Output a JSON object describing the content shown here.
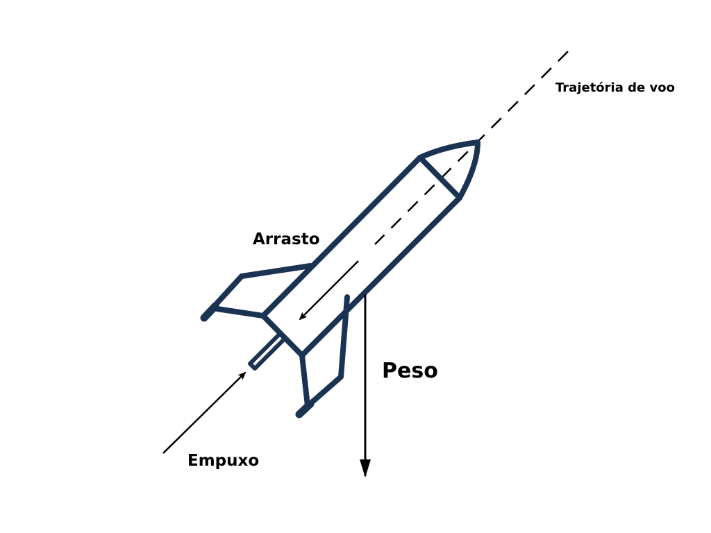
{
  "labels": {
    "trajectory": "Trajetória de voo",
    "drag": "Arrasto",
    "weight": "Peso",
    "thrust": "Empuxo"
  },
  "colors": {
    "rocket_outline": "#1b3352",
    "arrows": "#000000",
    "background": "#ffffff"
  }
}
